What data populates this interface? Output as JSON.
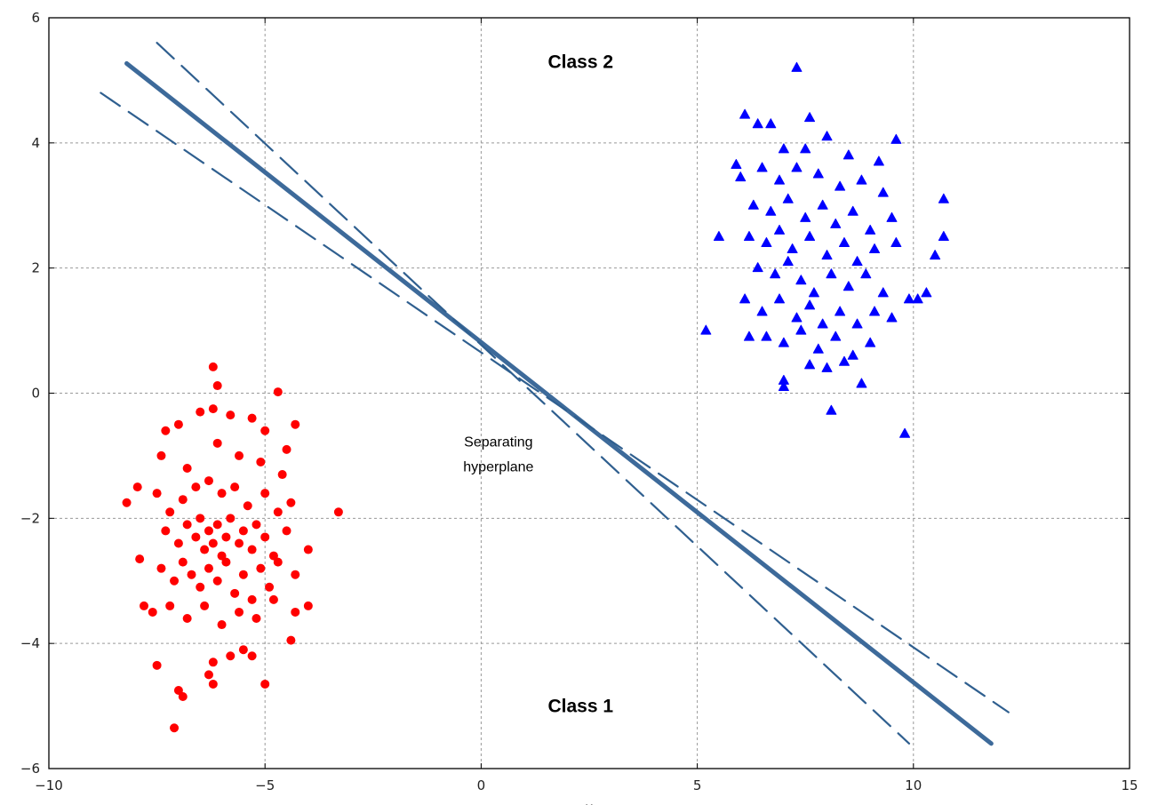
{
  "chart_data": {
    "type": "scatter",
    "title": "",
    "xlabel": "x",
    "ylabel": "",
    "xlim": [
      -10,
      15
    ],
    "ylim": [
      -6,
      6
    ],
    "xticks": [
      -10,
      -5,
      0,
      5,
      10,
      15
    ],
    "yticks": [
      -6,
      -4,
      -2,
      0,
      2,
      4,
      6
    ],
    "xtick_labels": [
      "−10",
      "−5",
      "0",
      "5",
      "10",
      "15"
    ],
    "ytick_labels": [
      "−6",
      "−4",
      "−2",
      "0",
      "2",
      "4",
      "6"
    ],
    "grid": true,
    "annotations": [
      {
        "text": "Class 2",
        "x": 2.3,
        "y": 5.2,
        "bold": true
      },
      {
        "text": "Class 1",
        "x": 2.3,
        "y": -5.1,
        "bold": true
      },
      {
        "text": "Separating",
        "x": 0.4,
        "y": -0.85,
        "bold": false
      },
      {
        "text": "hyperplane",
        "x": 0.4,
        "y": -1.25,
        "bold": false
      }
    ],
    "lines": [
      {
        "name": "separating-hyperplane",
        "style": "solid",
        "color": "#3d6a9a",
        "points": [
          [
            -8.2,
            5.27
          ],
          [
            11.8,
            -5.6
          ]
        ]
      },
      {
        "name": "margin-upper",
        "style": "dashed",
        "color": "#2f5f8f",
        "points": [
          [
            -7.5,
            5.6
          ],
          [
            9.9,
            -5.6
          ]
        ]
      },
      {
        "name": "margin-lower",
        "style": "dashed",
        "color": "#2f5f8f",
        "points": [
          [
            -8.8,
            4.8
          ],
          [
            12.2,
            -5.1
          ]
        ]
      }
    ],
    "series": [
      {
        "name": "Class 1",
        "marker": "circle",
        "color": "#ff0000",
        "points": [
          [
            -7.1,
            -5.35
          ],
          [
            -6.9,
            -4.85
          ],
          [
            -7.0,
            -4.75
          ],
          [
            -7.5,
            -4.35
          ],
          [
            -6.2,
            -4.65
          ],
          [
            -6.3,
            -4.5
          ],
          [
            -5.0,
            -4.65
          ],
          [
            -5.3,
            -4.2
          ],
          [
            -5.5,
            -4.1
          ],
          [
            -5.8,
            -4.2
          ],
          [
            -6.2,
            -4.3
          ],
          [
            -4.4,
            -3.95
          ],
          [
            -3.3,
            -1.9
          ],
          [
            -8.2,
            -1.75
          ],
          [
            -7.95,
            -1.5
          ],
          [
            -7.9,
            -2.65
          ],
          [
            -7.8,
            -3.4
          ],
          [
            -6.2,
            0.42
          ],
          [
            -6.1,
            0.12
          ],
          [
            -4.7,
            0.02
          ],
          [
            -4.3,
            -0.5
          ],
          [
            -4.0,
            -2.5
          ],
          [
            -4.0,
            -3.4
          ],
          [
            -4.3,
            -3.5
          ],
          [
            -7.3,
            -0.6
          ],
          [
            -7.0,
            -0.5
          ],
          [
            -6.5,
            -0.3
          ],
          [
            -6.2,
            -0.25
          ],
          [
            -5.8,
            -0.35
          ],
          [
            -5.3,
            -0.4
          ],
          [
            -5.0,
            -0.6
          ],
          [
            -4.5,
            -0.9
          ],
          [
            -7.4,
            -1.0
          ],
          [
            -6.8,
            -1.2
          ],
          [
            -6.1,
            -0.8
          ],
          [
            -5.6,
            -1.0
          ],
          [
            -5.1,
            -1.1
          ],
          [
            -4.6,
            -1.3
          ],
          [
            -7.5,
            -1.6
          ],
          [
            -7.2,
            -1.9
          ],
          [
            -6.9,
            -1.7
          ],
          [
            -6.6,
            -1.5
          ],
          [
            -6.3,
            -1.4
          ],
          [
            -6.0,
            -1.6
          ],
          [
            -5.7,
            -1.5
          ],
          [
            -5.4,
            -1.8
          ],
          [
            -5.0,
            -1.6
          ],
          [
            -4.7,
            -1.9
          ],
          [
            -4.4,
            -1.75
          ],
          [
            -7.3,
            -2.2
          ],
          [
            -7.0,
            -2.4
          ],
          [
            -6.8,
            -2.1
          ],
          [
            -6.6,
            -2.3
          ],
          [
            -6.5,
            -2.0
          ],
          [
            -6.4,
            -2.5
          ],
          [
            -6.3,
            -2.2
          ],
          [
            -6.2,
            -2.4
          ],
          [
            -6.1,
            -2.1
          ],
          [
            -6.0,
            -2.6
          ],
          [
            -5.9,
            -2.3
          ],
          [
            -5.8,
            -2.0
          ],
          [
            -5.6,
            -2.4
          ],
          [
            -5.5,
            -2.2
          ],
          [
            -5.3,
            -2.5
          ],
          [
            -5.2,
            -2.1
          ],
          [
            -5.0,
            -2.3
          ],
          [
            -4.8,
            -2.6
          ],
          [
            -4.5,
            -2.2
          ],
          [
            -4.3,
            -2.9
          ],
          [
            -7.4,
            -2.8
          ],
          [
            -7.1,
            -3.0
          ],
          [
            -6.9,
            -2.7
          ],
          [
            -6.7,
            -2.9
          ],
          [
            -6.5,
            -3.1
          ],
          [
            -6.3,
            -2.8
          ],
          [
            -6.1,
            -3.0
          ],
          [
            -5.9,
            -2.7
          ],
          [
            -5.7,
            -3.2
          ],
          [
            -5.5,
            -2.9
          ],
          [
            -5.3,
            -3.3
          ],
          [
            -5.1,
            -2.8
          ],
          [
            -4.9,
            -3.1
          ],
          [
            -4.7,
            -2.7
          ],
          [
            -7.6,
            -3.5
          ],
          [
            -7.2,
            -3.4
          ],
          [
            -6.8,
            -3.6
          ],
          [
            -6.4,
            -3.4
          ],
          [
            -6.0,
            -3.7
          ],
          [
            -5.6,
            -3.5
          ],
          [
            -5.2,
            -3.6
          ],
          [
            -4.8,
            -3.3
          ]
        ]
      },
      {
        "name": "Class 2",
        "marker": "triangle",
        "color": "#0000ff",
        "points": [
          [
            7.3,
            5.2
          ],
          [
            5.2,
            1.0
          ],
          [
            5.5,
            2.5
          ],
          [
            9.8,
            -0.65
          ],
          [
            8.1,
            -0.28
          ],
          [
            7.0,
            0.2
          ],
          [
            7.0,
            0.1
          ],
          [
            10.7,
            3.1
          ],
          [
            10.7,
            2.5
          ],
          [
            10.5,
            2.2
          ],
          [
            10.3,
            1.6
          ],
          [
            10.1,
            1.5
          ],
          [
            6.1,
            4.45
          ],
          [
            6.4,
            4.3
          ],
          [
            6.7,
            4.3
          ],
          [
            7.6,
            4.4
          ],
          [
            9.6,
            4.05
          ],
          [
            6.2,
            0.9
          ],
          [
            8.8,
            0.15
          ],
          [
            9.9,
            1.5
          ],
          [
            5.9,
            3.65
          ],
          [
            6.0,
            3.45
          ],
          [
            7.0,
            3.9
          ],
          [
            7.5,
            3.9
          ],
          [
            8.0,
            4.1
          ],
          [
            8.5,
            3.8
          ],
          [
            9.2,
            3.7
          ],
          [
            6.5,
            3.6
          ],
          [
            6.9,
            3.4
          ],
          [
            7.3,
            3.6
          ],
          [
            7.8,
            3.5
          ],
          [
            8.3,
            3.3
          ],
          [
            8.8,
            3.4
          ],
          [
            9.3,
            3.2
          ],
          [
            6.3,
            3.0
          ],
          [
            6.7,
            2.9
          ],
          [
            7.1,
            3.1
          ],
          [
            7.5,
            2.8
          ],
          [
            7.9,
            3.0
          ],
          [
            8.2,
            2.7
          ],
          [
            8.6,
            2.9
          ],
          [
            9.0,
            2.6
          ],
          [
            9.5,
            2.8
          ],
          [
            6.2,
            2.5
          ],
          [
            6.6,
            2.4
          ],
          [
            6.9,
            2.6
          ],
          [
            7.2,
            2.3
          ],
          [
            7.6,
            2.5
          ],
          [
            8.0,
            2.2
          ],
          [
            8.4,
            2.4
          ],
          [
            8.7,
            2.1
          ],
          [
            9.1,
            2.3
          ],
          [
            9.6,
            2.4
          ],
          [
            6.4,
            2.0
          ],
          [
            6.8,
            1.9
          ],
          [
            7.1,
            2.1
          ],
          [
            7.4,
            1.8
          ],
          [
            7.7,
            1.6
          ],
          [
            8.1,
            1.9
          ],
          [
            8.5,
            1.7
          ],
          [
            8.9,
            1.9
          ],
          [
            9.3,
            1.6
          ],
          [
            6.1,
            1.5
          ],
          [
            6.5,
            1.3
          ],
          [
            6.9,
            1.5
          ],
          [
            7.3,
            1.2
          ],
          [
            7.6,
            1.4
          ],
          [
            7.9,
            1.1
          ],
          [
            8.3,
            1.3
          ],
          [
            8.7,
            1.1
          ],
          [
            9.1,
            1.3
          ],
          [
            9.5,
            1.2
          ],
          [
            6.6,
            0.9
          ],
          [
            7.0,
            0.8
          ],
          [
            7.4,
            1.0
          ],
          [
            7.8,
            0.7
          ],
          [
            8.2,
            0.9
          ],
          [
            8.6,
            0.6
          ],
          [
            9.0,
            0.8
          ],
          [
            7.6,
            0.45
          ],
          [
            8.0,
            0.4
          ],
          [
            8.4,
            0.5
          ]
        ]
      }
    ]
  }
}
